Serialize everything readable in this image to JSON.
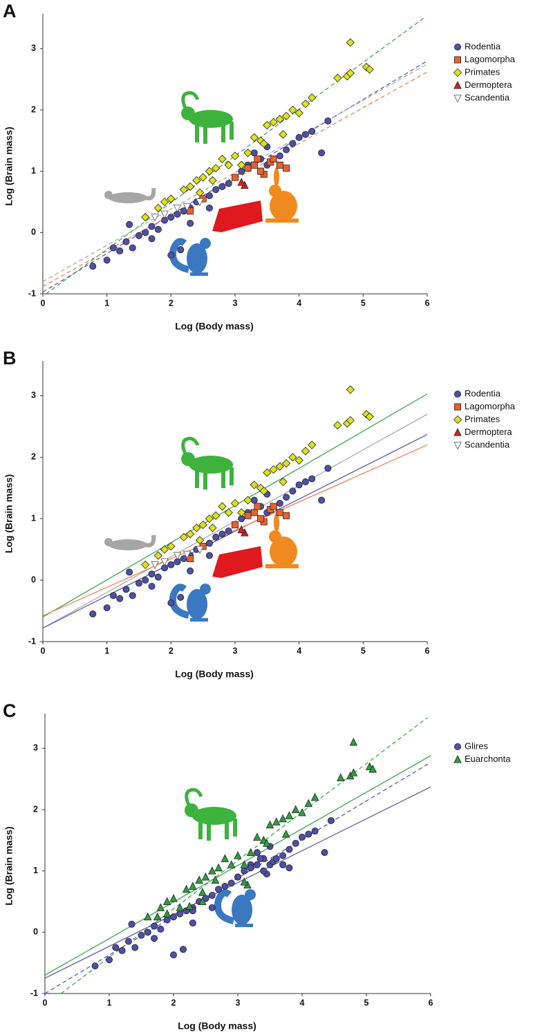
{
  "chart_data": [
    {
      "type": "scatter",
      "panel_label": "A",
      "xlabel": "Log (Body mass)",
      "ylabel": "Log (Brain mass)",
      "xlim": [
        0,
        6
      ],
      "ylim": [
        -1,
        3.5
      ],
      "xticks": [
        0,
        1,
        2,
        3,
        4,
        5,
        6
      ],
      "yticks": [
        -1,
        0,
        1,
        2,
        3
      ],
      "series": [
        {
          "name": "Rodentia",
          "color": "#4e4fa6",
          "marker": "circle",
          "x": [
            0.78,
            1,
            1.2,
            1.3,
            1.4,
            1.5,
            1.6,
            1.7,
            1.8,
            1.9,
            2,
            2.1,
            2.2,
            2.3,
            2.4,
            2.5,
            2.6,
            2.7,
            2.8,
            2.9,
            3,
            3.1,
            3.2,
            3.4,
            3.5,
            3.7,
            3.8,
            3.9,
            4,
            4.1,
            4.2,
            4.35,
            4.45,
            1.35,
            2,
            2.15,
            1.1,
            1.7,
            2.3,
            3.3,
            3.5,
            2.6
          ],
          "values": [
            -0.55,
            -0.45,
            -0.3,
            -0.15,
            -0.25,
            -0.05,
            0,
            0.1,
            0.05,
            0.2,
            0.25,
            0.3,
            0.35,
            0.4,
            0.5,
            0.55,
            0.6,
            0.7,
            0.75,
            0.8,
            0.9,
            1,
            1.1,
            1.2,
            1.1,
            1.25,
            1.35,
            1.45,
            1.55,
            1.6,
            1.65,
            1.3,
            1.82,
            0.13,
            -0.37,
            -0.28,
            -0.25,
            -0.1,
            0.15,
            1.3,
            1.4,
            0.4
          ]
        },
        {
          "name": "Lagomorpha",
          "color": "#e8622c",
          "marker": "square",
          "x": [
            2.3,
            2.5,
            3,
            3.2,
            3.3,
            3.35,
            3.45,
            3.55,
            3.7,
            3.8,
            3.4,
            3.6
          ],
          "values": [
            0.35,
            0.55,
            0.9,
            1.05,
            1.1,
            1.2,
            0.95,
            1.15,
            1.1,
            1.05,
            1,
            1.2
          ]
        },
        {
          "name": "Primates",
          "color": "#dde21a",
          "marker": "diamond",
          "x": [
            1.6,
            1.8,
            1.9,
            2,
            2.2,
            2.3,
            2.4,
            2.5,
            2.6,
            2.7,
            2.8,
            2.9,
            3,
            3.1,
            3.2,
            3.4,
            3.5,
            3.6,
            3.7,
            3.8,
            3.9,
            4,
            4.1,
            4.2,
            3.3,
            3.45,
            3.75,
            4.6,
            4.75,
            4.8,
            4.8,
            5.05,
            5.1,
            2.45,
            2.65
          ],
          "values": [
            0.25,
            0.4,
            0.5,
            0.55,
            0.7,
            0.75,
            0.85,
            0.9,
            1,
            1.05,
            1.2,
            1.1,
            1.25,
            1.1,
            1.3,
            1.5,
            1.75,
            1.8,
            1.85,
            1.9,
            2,
            1.95,
            2.1,
            2.2,
            1.55,
            1.45,
            1.6,
            2.52,
            2.55,
            3.1,
            2.6,
            2.7,
            2.66,
            0.65,
            0.85
          ]
        },
        {
          "name": "Dermoptera",
          "color": "#d62020",
          "marker": "triangle",
          "x": [
            3.15,
            3.1
          ],
          "values": [
            0.77,
            0.82
          ]
        },
        {
          "name": "Scandentia",
          "color": "#ffffff",
          "marker": "triangle-down",
          "x": [
            1.75,
            1.9,
            2.1,
            2.25,
            2.45
          ],
          "values": [
            0.25,
            0.3,
            0.4,
            0.42,
            0.5
          ]
        }
      ],
      "fit_lines": [
        {
          "color": "#3aa84a",
          "dashed": true,
          "x": [
            0.05,
            5.95
          ],
          "values": [
            -1,
            3.5
          ]
        },
        {
          "color": "#5a5ab0",
          "dashed": true,
          "x": [
            0,
            6
          ],
          "values": [
            -0.97,
            2.8
          ]
        },
        {
          "color": "#aaaaaa",
          "dashed": true,
          "x": [
            0,
            6
          ],
          "values": [
            -0.8,
            2.75
          ]
        },
        {
          "color": "#f08050",
          "dashed": true,
          "x": [
            0,
            6
          ],
          "values": [
            -0.88,
            2.62
          ]
        }
      ]
    },
    {
      "type": "scatter",
      "panel_label": "B",
      "xlabel": "Log (Body mass)",
      "ylabel": "Log (Brain mass)",
      "xlim": [
        0,
        6
      ],
      "ylim": [
        -1,
        3.5
      ],
      "xticks": [
        0,
        1,
        2,
        3,
        4,
        5,
        6
      ],
      "yticks": [
        -1,
        0,
        1,
        2,
        3
      ],
      "series": [
        {
          "name": "Rodentia",
          "color": "#4e4fa6",
          "marker": "circle",
          "x": [
            0.78,
            1,
            1.2,
            1.3,
            1.4,
            1.5,
            1.6,
            1.7,
            1.8,
            1.9,
            2,
            2.1,
            2.2,
            2.3,
            2.4,
            2.5,
            2.6,
            2.7,
            2.8,
            2.9,
            3,
            3.1,
            3.2,
            3.4,
            3.5,
            3.7,
            3.8,
            3.9,
            4,
            4.1,
            4.2,
            4.35,
            4.45,
            1.35,
            2,
            2.15,
            1.1,
            1.7,
            2.3,
            3.3,
            3.5,
            2.6
          ],
          "values": [
            -0.55,
            -0.45,
            -0.3,
            -0.15,
            -0.25,
            -0.05,
            0,
            0.1,
            0.05,
            0.2,
            0.25,
            0.3,
            0.35,
            0.4,
            0.5,
            0.55,
            0.6,
            0.7,
            0.75,
            0.8,
            0.9,
            1,
            1.1,
            1.2,
            1.1,
            1.25,
            1.35,
            1.45,
            1.55,
            1.6,
            1.65,
            1.3,
            1.82,
            0.13,
            -0.37,
            -0.28,
            -0.25,
            -0.1,
            0.15,
            1.3,
            1.4,
            0.4
          ]
        },
        {
          "name": "Lagomorpha",
          "color": "#e8622c",
          "marker": "square",
          "x": [
            2.3,
            2.5,
            3,
            3.2,
            3.3,
            3.35,
            3.45,
            3.55,
            3.7,
            3.8,
            3.4,
            3.6
          ],
          "values": [
            0.35,
            0.55,
            0.9,
            1.05,
            1.1,
            1.2,
            0.95,
            1.15,
            1.1,
            1.05,
            1,
            1.2
          ]
        },
        {
          "name": "Primates",
          "color": "#dde21a",
          "marker": "diamond",
          "x": [
            1.6,
            1.8,
            1.9,
            2,
            2.2,
            2.3,
            2.4,
            2.5,
            2.6,
            2.7,
            2.8,
            2.9,
            3,
            3.1,
            3.2,
            3.4,
            3.5,
            3.6,
            3.7,
            3.8,
            3.9,
            4,
            4.1,
            4.2,
            3.3,
            3.45,
            3.75,
            4.6,
            4.75,
            4.8,
            4.8,
            5.05,
            5.1,
            2.45,
            2.65
          ],
          "values": [
            0.25,
            0.4,
            0.5,
            0.55,
            0.7,
            0.75,
            0.85,
            0.9,
            1,
            1.05,
            1.2,
            1.1,
            1.25,
            1.1,
            1.3,
            1.5,
            1.75,
            1.8,
            1.85,
            1.9,
            2,
            1.95,
            2.1,
            2.2,
            1.55,
            1.45,
            1.6,
            2.52,
            2.55,
            3.1,
            2.6,
            2.7,
            2.66,
            0.65,
            0.85
          ]
        },
        {
          "name": "Dermoptera",
          "color": "#d62020",
          "marker": "triangle",
          "x": [
            3.15,
            3.1
          ],
          "values": [
            0.77,
            0.82
          ]
        },
        {
          "name": "Scandentia",
          "color": "#ffffff",
          "marker": "triangle-down",
          "x": [
            1.75,
            1.9,
            2.1,
            2.25,
            2.45
          ],
          "values": [
            0.25,
            0.3,
            0.4,
            0.42,
            0.5
          ]
        }
      ],
      "fit_lines": [
        {
          "color": "#3aa84a",
          "dashed": false,
          "x": [
            0,
            6
          ],
          "values": [
            -0.6,
            3.03
          ]
        },
        {
          "color": "#aaaaaa",
          "dashed": false,
          "x": [
            0,
            6
          ],
          "values": [
            -0.78,
            2.7
          ]
        },
        {
          "color": "#5a5ab0",
          "dashed": false,
          "x": [
            0,
            6
          ],
          "values": [
            -0.78,
            2.37
          ]
        },
        {
          "color": "#f08050",
          "dashed": false,
          "x": [
            0,
            6
          ],
          "values": [
            -0.58,
            2.2
          ]
        }
      ]
    },
    {
      "type": "scatter",
      "panel_label": "C",
      "xlabel": "Log (Body mass)",
      "ylabel": "Log (Brain mass)",
      "xlim": [
        0,
        6
      ],
      "ylim": [
        -1,
        3.5
      ],
      "xticks": [
        0,
        1,
        2,
        3,
        4,
        5,
        6
      ],
      "yticks": [
        -1,
        0,
        1,
        2,
        3
      ],
      "series": [
        {
          "name": "Glires",
          "color": "#4e4fa6",
          "marker": "circle",
          "x": [
            0.78,
            1,
            1.2,
            1.3,
            1.4,
            1.5,
            1.6,
            1.7,
            1.8,
            1.9,
            2,
            2.1,
            2.2,
            2.3,
            2.4,
            2.5,
            2.6,
            2.7,
            2.8,
            2.9,
            3,
            3.1,
            3.2,
            3.4,
            3.5,
            3.7,
            3.8,
            3.9,
            4,
            4.1,
            4.2,
            4.35,
            4.45,
            1.35,
            2,
            2.15,
            1.1,
            1.7,
            2.3,
            3.3,
            3.5,
            2.6,
            2.3,
            2.5,
            3,
            3.2,
            3.3,
            3.35,
            3.45,
            3.55,
            3.7,
            3.8,
            3.4,
            3.6
          ],
          "values": [
            -0.55,
            -0.45,
            -0.3,
            -0.15,
            -0.25,
            -0.05,
            0,
            0.1,
            0.05,
            0.2,
            0.25,
            0.3,
            0.35,
            0.4,
            0.5,
            0.55,
            0.6,
            0.7,
            0.75,
            0.8,
            0.9,
            1,
            1.1,
            1.2,
            1.1,
            1.25,
            1.35,
            1.45,
            1.55,
            1.6,
            1.65,
            1.3,
            1.82,
            0.13,
            -0.37,
            -0.28,
            -0.25,
            -0.1,
            0.15,
            1.3,
            1.4,
            0.4,
            0.35,
            0.55,
            0.9,
            1.05,
            1.1,
            1.2,
            0.95,
            1.15,
            1.1,
            1.05,
            1,
            1.2
          ]
        },
        {
          "name": "Euarchonta",
          "color": "#2e9e3e",
          "marker": "triangle",
          "x": [
            1.6,
            1.8,
            1.9,
            2,
            2.2,
            2.3,
            2.4,
            2.5,
            2.6,
            2.7,
            2.8,
            2.9,
            3,
            3.1,
            3.2,
            3.4,
            3.5,
            3.6,
            3.7,
            3.8,
            3.9,
            4,
            4.1,
            4.2,
            3.3,
            3.45,
            3.75,
            4.6,
            4.75,
            4.8,
            4.8,
            5.05,
            5.1,
            2.45,
            2.65,
            3.15,
            3.1,
            1.75,
            1.9,
            2.1,
            2.25,
            2.45
          ],
          "values": [
            0.25,
            0.4,
            0.5,
            0.55,
            0.7,
            0.75,
            0.85,
            0.9,
            1,
            1.05,
            1.2,
            1.1,
            1.25,
            1.1,
            1.3,
            1.5,
            1.75,
            1.8,
            1.85,
            1.9,
            2,
            1.95,
            2.1,
            2.2,
            1.55,
            1.45,
            1.6,
            2.52,
            2.55,
            3.1,
            2.6,
            2.7,
            2.66,
            0.65,
            0.85,
            0.77,
            0.82,
            0.25,
            0.3,
            0.4,
            0.42,
            0.5
          ]
        }
      ],
      "fit_lines": [
        {
          "color": "#3aa84a",
          "dashed": true,
          "x": [
            0.25,
            5.95
          ],
          "values": [
            -1,
            3.5
          ]
        },
        {
          "color": "#3aa84a",
          "dashed": false,
          "x": [
            0,
            6
          ],
          "values": [
            -0.7,
            2.88
          ]
        },
        {
          "color": "#5a5ab0",
          "dashed": true,
          "x": [
            0,
            6
          ],
          "values": [
            -1,
            2.77
          ]
        },
        {
          "color": "#5a5ab0",
          "dashed": false,
          "x": [
            0,
            6
          ],
          "values": [
            -0.75,
            2.37
          ]
        }
      ]
    }
  ]
}
